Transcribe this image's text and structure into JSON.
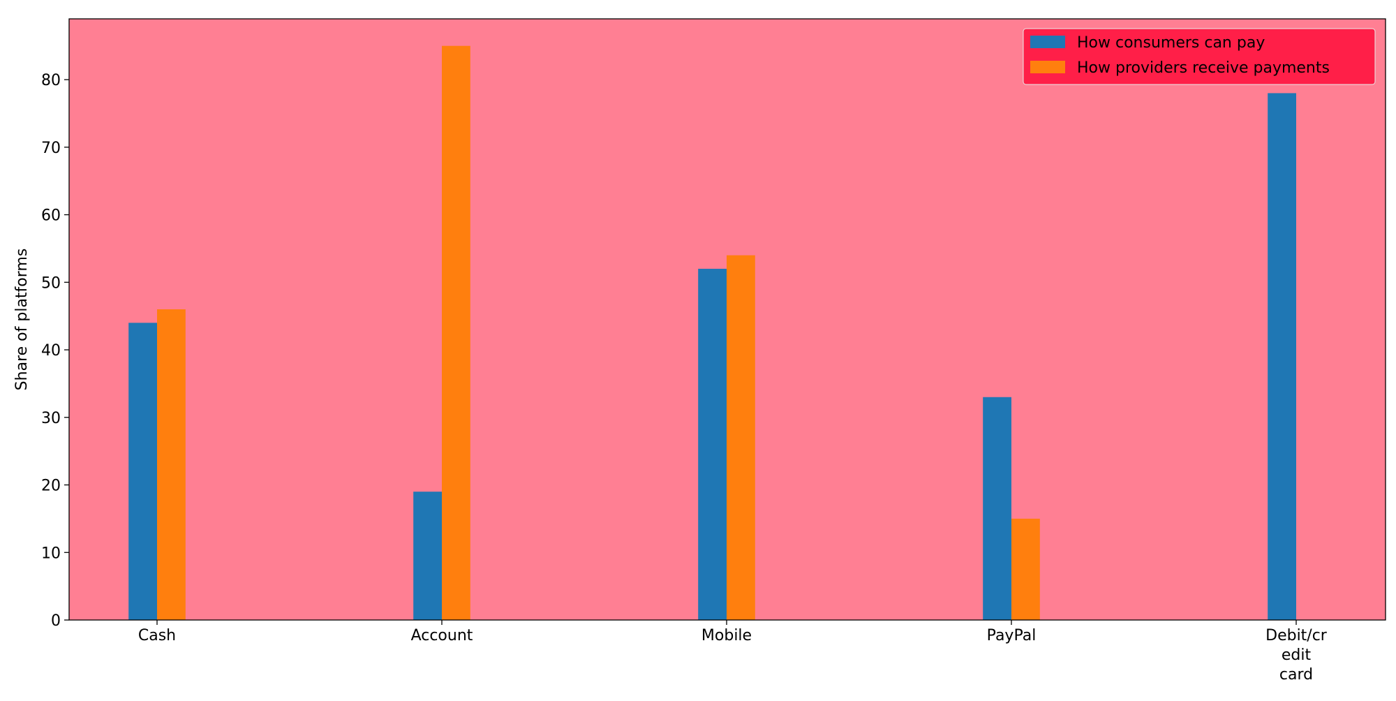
{
  "chart_data": {
    "type": "bar",
    "title": "",
    "xlabel": "",
    "ylabel": "Share of platforms",
    "categories": [
      [
        "Cash"
      ],
      [
        "Account"
      ],
      [
        "Mobile"
      ],
      [
        "PayPal"
      ],
      [
        "Debit/cr",
        "edit",
        "card"
      ]
    ],
    "series": [
      {
        "name": "How consumers can pay",
        "color": "#1f77b4",
        "values": [
          44,
          19,
          52,
          33,
          78
        ]
      },
      {
        "name": "How providers receive payments",
        "color": "#ff7f0e",
        "values": [
          46,
          85,
          54,
          15,
          null
        ]
      }
    ],
    "ylim": [
      0,
      89
    ],
    "yticks": [
      0,
      10,
      20,
      30,
      40,
      50,
      60,
      70,
      80
    ],
    "grid": false,
    "legend_position": "top-right",
    "colors": {
      "plot_background": "#ff7f93",
      "legend_background": "#ff1f48",
      "axis": "#000000"
    }
  }
}
